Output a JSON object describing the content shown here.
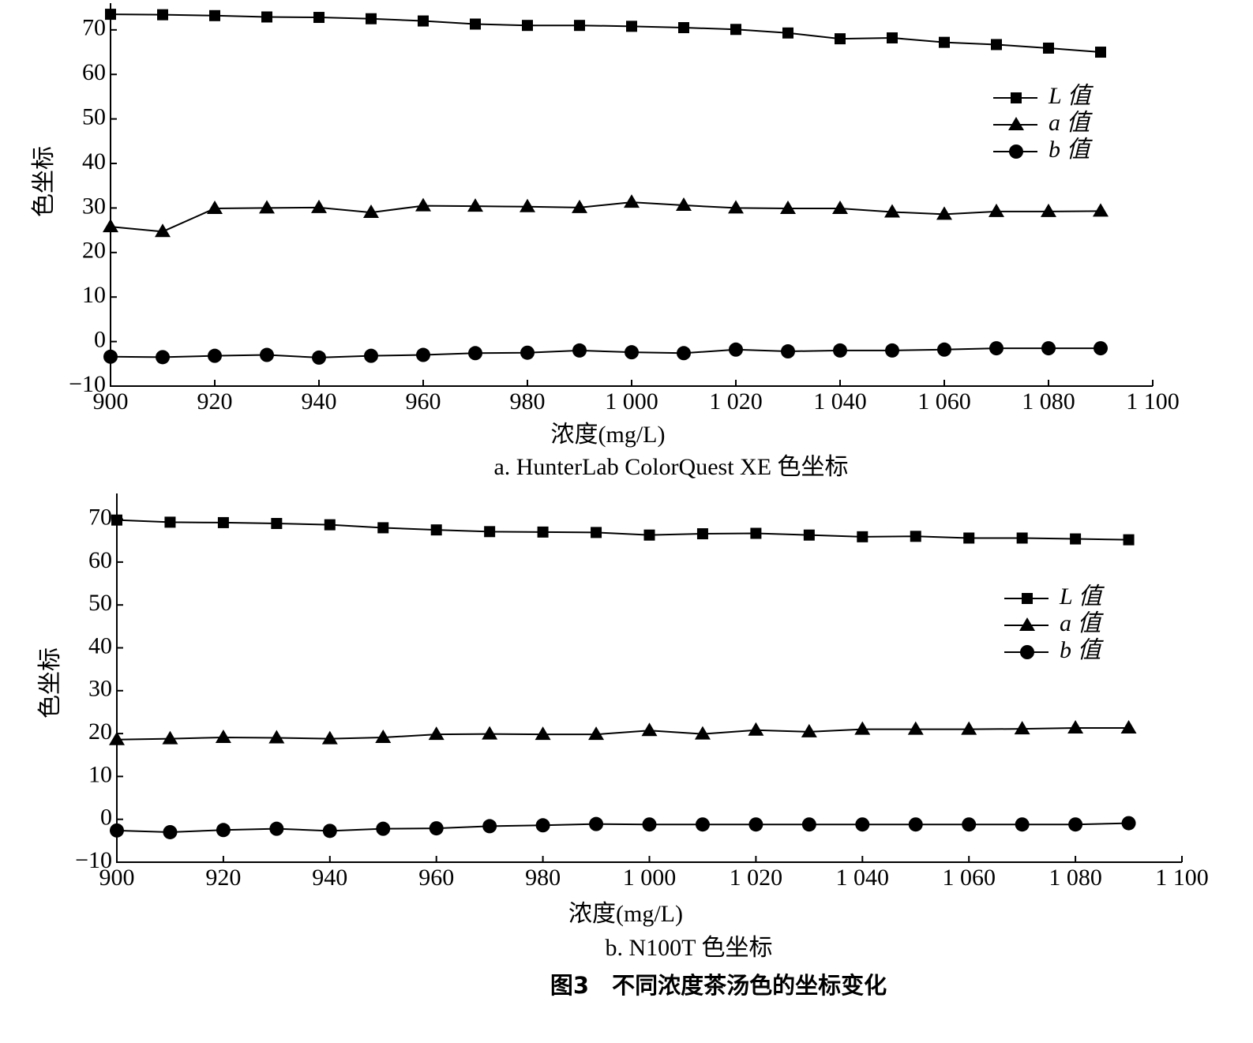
{
  "caption": "图3　不同浓度茶汤色的坐标变化",
  "chart_data": [
    {
      "type": "line",
      "title": "a. HunterLab ColorQuest XE 色坐标",
      "xlabel": "浓度(mg/L)",
      "ylabel": "色坐标",
      "x": [
        900,
        910,
        920,
        930,
        940,
        950,
        960,
        970,
        980,
        990,
        1000,
        1010,
        1020,
        1030,
        1040,
        1050,
        1060,
        1070,
        1080,
        1090
      ],
      "xlim": [
        900,
        1100
      ],
      "xticks": [
        900,
        920,
        940,
        960,
        980,
        {
          "value": 1000,
          "label": "1 000"
        },
        {
          "value": 1020,
          "label": "1 020"
        },
        {
          "value": 1040,
          "label": "1 040"
        },
        {
          "value": 1060,
          "label": "1 060"
        },
        {
          "value": 1080,
          "label": "1 080"
        },
        {
          "value": 1100,
          "label": "1 100"
        }
      ],
      "ylim": [
        -10,
        76
      ],
      "yticks": [
        {
          "value": -10,
          "label": "−10"
        },
        0,
        10,
        20,
        30,
        40,
        50,
        60,
        70
      ],
      "legend": "upper right",
      "series": [
        {
          "name": "L 值",
          "color": "#000000",
          "marker": "square",
          "values": [
            73.5,
            73.4,
            73.2,
            72.9,
            72.8,
            72.5,
            72.0,
            71.3,
            71.0,
            71.0,
            70.8,
            70.5,
            70.1,
            69.3,
            68.0,
            68.2,
            67.2,
            66.7,
            65.9,
            65.0
          ]
        },
        {
          "name": "a 值",
          "color": "#000000",
          "marker": "triangle",
          "values": [
            25.8,
            24.7,
            29.9,
            30.0,
            30.1,
            29.0,
            30.5,
            30.4,
            30.3,
            30.1,
            31.3,
            30.6,
            30.0,
            29.9,
            29.9,
            29.1,
            28.6,
            29.2,
            29.2,
            29.3
          ]
        },
        {
          "name": "b 值",
          "color": "#000000",
          "marker": "circle",
          "values": [
            -3.4,
            -3.5,
            -3.2,
            -3.0,
            -3.6,
            -3.2,
            -3.0,
            -2.6,
            -2.5,
            -2.0,
            -2.4,
            -2.6,
            -1.8,
            -2.2,
            -2.0,
            -2.0,
            -1.8,
            -1.5,
            -1.5,
            -1.5
          ]
        }
      ]
    },
    {
      "type": "line",
      "title": "b. N100T 色坐标",
      "xlabel": "浓度(mg/L)",
      "ylabel": "色坐标",
      "x": [
        900,
        910,
        920,
        930,
        940,
        950,
        960,
        970,
        980,
        990,
        1000,
        1010,
        1020,
        1030,
        1040,
        1050,
        1060,
        1070,
        1080,
        1090
      ],
      "xlim": [
        900,
        1100
      ],
      "xticks": [
        900,
        920,
        940,
        960,
        980,
        {
          "value": 1000,
          "label": "1 000"
        },
        {
          "value": 1020,
          "label": "1 020"
        },
        {
          "value": 1040,
          "label": "1 040"
        },
        {
          "value": 1060,
          "label": "1 060"
        },
        {
          "value": 1080,
          "label": "1 080"
        },
        {
          "value": 1100,
          "label": "1 100"
        }
      ],
      "ylim": [
        -10,
        76
      ],
      "yticks": [
        {
          "value": -10,
          "label": "−10"
        },
        0,
        10,
        20,
        30,
        40,
        50,
        60,
        70
      ],
      "legend": "upper right",
      "series": [
        {
          "name": "L 值",
          "color": "#000000",
          "marker": "square",
          "values": [
            69.8,
            69.3,
            69.2,
            69.0,
            68.7,
            68.0,
            67.5,
            67.1,
            67.0,
            66.9,
            66.3,
            66.6,
            66.7,
            66.3,
            65.9,
            66.0,
            65.6,
            65.6,
            65.4,
            65.2
          ]
        },
        {
          "name": "a 值",
          "color": "#000000",
          "marker": "triangle",
          "values": [
            18.6,
            18.8,
            19.1,
            19.0,
            18.8,
            19.1,
            19.8,
            19.9,
            19.8,
            19.8,
            20.7,
            19.9,
            20.8,
            20.4,
            21.0,
            21.0,
            21.0,
            21.1,
            21.3,
            21.3
          ]
        },
        {
          "name": "b 值",
          "color": "#000000",
          "marker": "circle",
          "values": [
            -2.6,
            -3.0,
            -2.5,
            -2.2,
            -2.7,
            -2.2,
            -2.1,
            -1.6,
            -1.4,
            -1.1,
            -1.2,
            -1.2,
            -1.2,
            -1.2,
            -1.2,
            -1.2,
            -1.2,
            -1.2,
            -1.2,
            -0.9
          ]
        }
      ]
    }
  ]
}
